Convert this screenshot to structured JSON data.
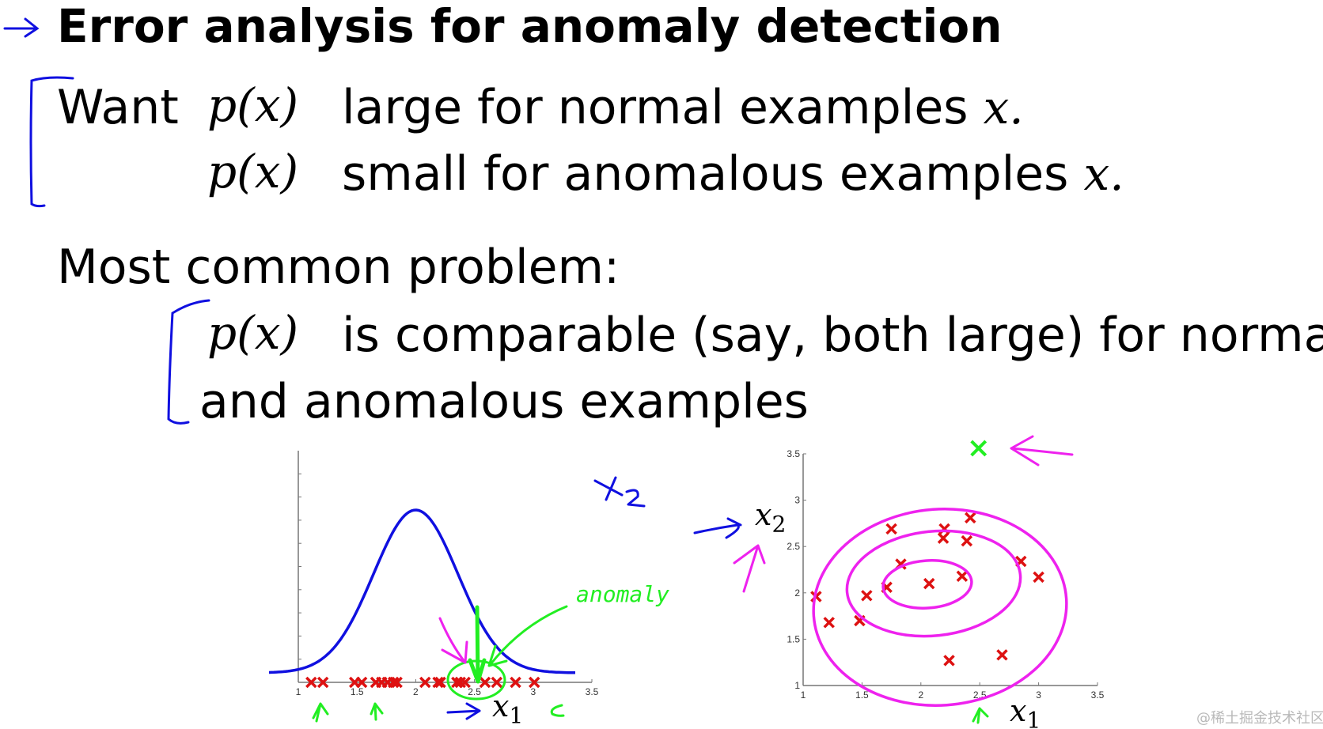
{
  "title": "Error analysis for anomaly detection",
  "want": {
    "label": "Want",
    "line1_math": "p(x)",
    "line1_text": "large for normal examples",
    "line1_var": "x.",
    "line2_math": "p(x)",
    "line2_text": "small for anomalous examples",
    "line2_var": "x."
  },
  "problem": {
    "heading": "Most common problem:",
    "math": "p(x)",
    "text1": "is comparable (say, both large) for normal",
    "text2": "and anomalous examples"
  },
  "annotations": {
    "x2_handwritten": "x2",
    "anomaly_handwritten": "anomaly",
    "x1_left_label": "x",
    "x1_left_sub": "1",
    "x1_right_label": "x",
    "x1_right_sub": "1",
    "x2_right_label": "x",
    "x2_right_sub": "2"
  },
  "watermark": "@稀土掘金技术社区",
  "colors": {
    "ink_blue": "#1010e0",
    "ink_green": "#22ee22",
    "ink_magenta": "#ee22ee",
    "marker_red": "#dd1111",
    "axis": "#777777"
  },
  "chart_data": [
    {
      "type": "scatter",
      "xlim": [
        1,
        3.5
      ],
      "x_ticks": [
        "1",
        "1.5",
        "2",
        "2.5",
        "3",
        "3.5"
      ],
      "y_ticks_unlabeled": 10,
      "marker": "x",
      "points_x": [
        1.11,
        1.21,
        1.48,
        1.54,
        1.66,
        1.71,
        1.76,
        1.81,
        1.84,
        2.08,
        2.19,
        2.21,
        2.35,
        2.38,
        2.42,
        2.59,
        2.69,
        2.85,
        3.01
      ],
      "density_curve": {
        "shape": "gaussian",
        "mean": 2.0,
        "std": 0.36
      },
      "xlabel": "x1"
    },
    {
      "type": "scatter",
      "xlim": [
        1,
        3.5
      ],
      "ylim": [
        1,
        3.5
      ],
      "x_ticks": [
        "1",
        "1.5",
        "2",
        "2.5",
        "3",
        "3.5"
      ],
      "y_ticks": [
        "1",
        "1.5",
        "2",
        "2.5",
        "3",
        "3.5"
      ],
      "marker": "x",
      "points": [
        [
          1.11,
          1.96
        ],
        [
          1.22,
          1.68
        ],
        [
          1.54,
          1.97
        ],
        [
          1.48,
          1.7
        ],
        [
          1.71,
          2.06
        ],
        [
          1.83,
          2.31
        ],
        [
          1.75,
          2.69
        ],
        [
          2.07,
          2.1
        ],
        [
          2.2,
          2.69
        ],
        [
          2.19,
          2.59
        ],
        [
          2.39,
          2.56
        ],
        [
          2.42,
          2.81
        ],
        [
          2.35,
          2.18
        ],
        [
          2.85,
          2.34
        ],
        [
          3.0,
          2.17
        ],
        [
          2.24,
          1.27
        ],
        [
          2.69,
          1.33
        ]
      ],
      "anomaly_point": [
        2.49,
        3.56
      ],
      "xlabel": "x1",
      "ylabel": "x2"
    }
  ]
}
